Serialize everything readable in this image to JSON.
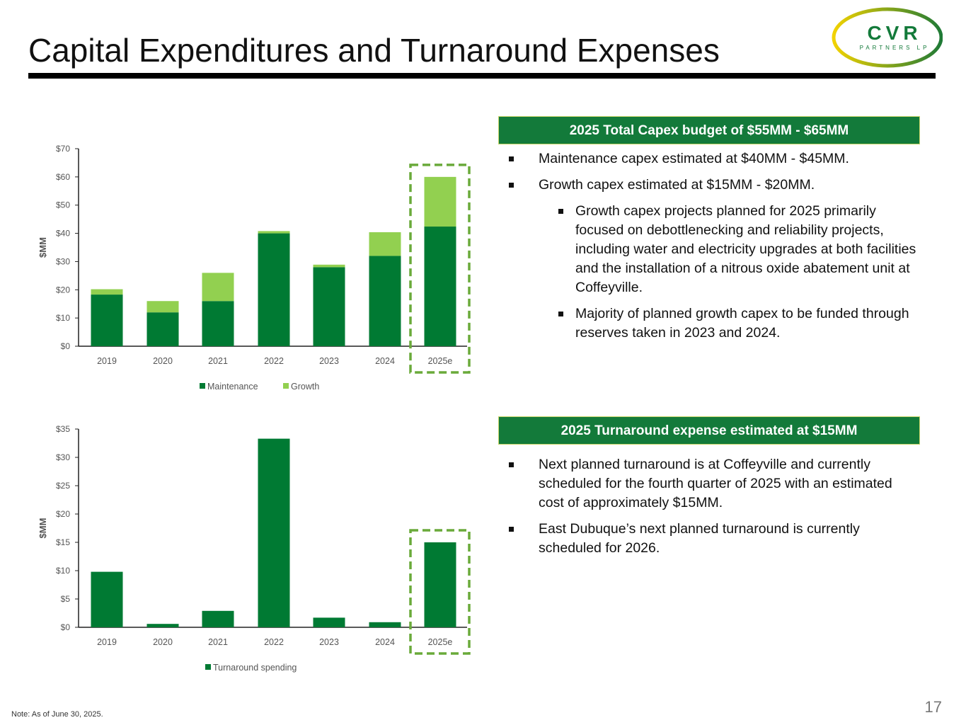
{
  "title": "Capital Expenditures and Turnaround Expenses",
  "logo": {
    "text": "CVR",
    "subtext": "PARTNERS LP"
  },
  "capex_box": {
    "header": "2025 Total Capex budget of $55MM - $65MM",
    "bullets": [
      "Maintenance capex estimated at $40MM - $45MM.",
      "Growth capex estimated at $15MM - $20MM."
    ],
    "sub_bullets": [
      "Growth capex projects planned for 2025 primarily focused on debottlenecking and reliability projects, including water and electricity upgrades at both facilities and the installation of a nitrous oxide abatement unit at Coffeyville.",
      "Majority of planned growth capex to be funded through reserves taken in 2023 and 2024."
    ]
  },
  "turnaround_box": {
    "header": "2025 Turnaround expense estimated at $15MM",
    "bullets": [
      "Next planned turnaround is at Coffeyville and currently scheduled for the fourth quarter of 2025 with an estimated cost of approximately $15MM.",
      "East Dubuque’s next planned turnaround is currently scheduled for 2026."
    ]
  },
  "note": "Note:  As of June 30, 2025.",
  "page_number": "17",
  "colors": {
    "dark_green": "#007a33",
    "light_green": "#92d050",
    "highlight": "#6aaa3a"
  },
  "chart_data": [
    {
      "type": "bar",
      "stacked": true,
      "categories": [
        "2019",
        "2020",
        "2021",
        "2022",
        "2023",
        "2024",
        "2025e"
      ],
      "series": [
        {
          "name": "Maintenance",
          "values": [
            18.3,
            12,
            16,
            40,
            28,
            32,
            42.4
          ]
        },
        {
          "name": "Growth",
          "values": [
            1.9,
            4,
            10,
            0.8,
            0.9,
            8.4,
            17.6
          ]
        }
      ],
      "ylabel": "$MM",
      "ylim": [
        0,
        70
      ],
      "yticks": [
        "$0",
        "$10",
        "$20",
        "$30",
        "$40",
        "$50",
        "$60",
        "$70"
      ],
      "legend": "bottom",
      "highlight": "2025e"
    },
    {
      "type": "bar",
      "categories": [
        "2019",
        "2020",
        "2021",
        "2022",
        "2023",
        "2024",
        "2025e"
      ],
      "series": [
        {
          "name": "Turnaround spending",
          "values": [
            9.8,
            0.6,
            2.9,
            33.3,
            1.7,
            0.9,
            15
          ]
        }
      ],
      "ylabel": "$MM",
      "ylim": [
        0,
        35
      ],
      "yticks": [
        "$0",
        "$5",
        "$10",
        "$15",
        "$20",
        "$25",
        "$30",
        "$35"
      ],
      "legend": "bottom",
      "highlight": "2025e"
    }
  ]
}
